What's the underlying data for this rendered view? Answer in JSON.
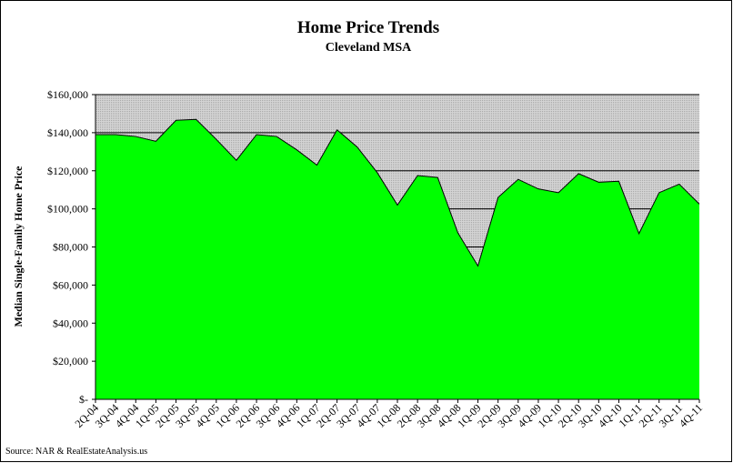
{
  "chart_data": {
    "type": "area",
    "title": "Home Price Trends",
    "subtitle": "Cleveland MSA",
    "y_label": "Median Single-Family Home Price",
    "source": "Source: NAR & RealEstateAnalysis.us",
    "categories": [
      "2Q-04",
      "3Q-04",
      "4Q-04",
      "1Q-05",
      "2Q-05",
      "3Q-05",
      "4Q-05",
      "1Q-06",
      "2Q-06",
      "3Q-06",
      "4Q-06",
      "1Q-07",
      "2Q-07",
      "3Q-07",
      "4Q-07",
      "1Q-08",
      "2Q-08",
      "3Q-08",
      "4Q-08",
      "1Q-09",
      "2Q-09",
      "3Q-09",
      "4Q-09",
      "1Q-10",
      "2Q-10",
      "3Q-10",
      "4Q-10",
      "1Q-11",
      "2Q-11",
      "3Q-11",
      "4Q-11"
    ],
    "values": [
      139000,
      139000,
      138000,
      135500,
      146500,
      147000,
      136500,
      125500,
      139000,
      138000,
      131000,
      123000,
      141500,
      132500,
      119000,
      102000,
      117500,
      116500,
      87500,
      70000,
      106000,
      115500,
      110500,
      108500,
      118500,
      114000,
      114500,
      87000,
      108500,
      113000,
      102500
    ],
    "color": "#00ff00",
    "ylim": [
      0,
      160000
    ],
    "yticks": [
      {
        "value": 0,
        "label": "$-"
      },
      {
        "value": 20000,
        "label": "$20,000"
      },
      {
        "value": 40000,
        "label": "$40,000"
      },
      {
        "value": 60000,
        "label": "$60,000"
      },
      {
        "value": 80000,
        "label": "$80,000"
      },
      {
        "value": 100000,
        "label": "$100,000"
      },
      {
        "value": 120000,
        "label": "$120,000"
      },
      {
        "value": 140000,
        "label": "$140,000"
      },
      {
        "value": 160000,
        "label": "$160,000"
      }
    ],
    "grid": true
  }
}
